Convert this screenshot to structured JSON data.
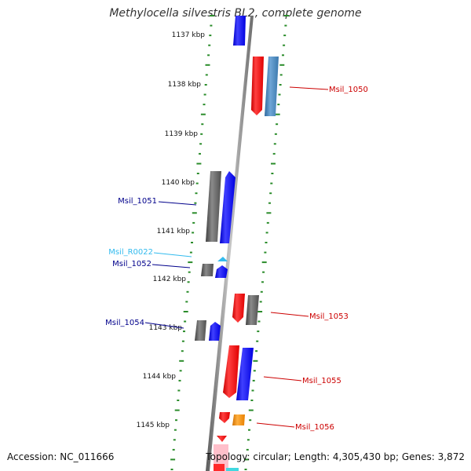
{
  "title": "Methylocella silvestris BL2, complete genome",
  "footer": {
    "accession": "Accession: NC_011666",
    "topology": "Topology: circular; Length: 4,305,430 bp; Genes: 3,872"
  },
  "colors": {
    "forward_cds": "#0000ff",
    "reverse_cds": "#ff0000",
    "other_forward": "#4682b4",
    "pseudo_grey": "#606060",
    "rna": "#33bbee",
    "orange_feature": "#ff8c00",
    "tick": "#2a8c2a",
    "backbone": "#808080",
    "label_forward": "#00008b",
    "label_reverse": "#cc0000",
    "label_rna": "#33bbee"
  },
  "ruler": {
    "ticks": [
      "1137 kbp",
      "1138 kbp",
      "1139 kbp",
      "1140 kbp",
      "1141 kbp",
      "1142 kbp",
      "1143 kbp",
      "1144 kbp",
      "1145 kbp"
    ]
  },
  "gene_labels": [
    {
      "id": "Msil_1050",
      "side": "right",
      "type": "reverse"
    },
    {
      "id": "Msil_1051",
      "side": "left",
      "type": "forward"
    },
    {
      "id": "Msil_R0022",
      "side": "left",
      "type": "rna"
    },
    {
      "id": "Msil_1052",
      "side": "left",
      "type": "forward"
    },
    {
      "id": "Msil_1053",
      "side": "right",
      "type": "reverse"
    },
    {
      "id": "Msil_1054",
      "side": "left",
      "type": "forward"
    },
    {
      "id": "Msil_1055",
      "side": "right",
      "type": "reverse"
    },
    {
      "id": "Msil_1056",
      "side": "right",
      "type": "reverse"
    }
  ]
}
